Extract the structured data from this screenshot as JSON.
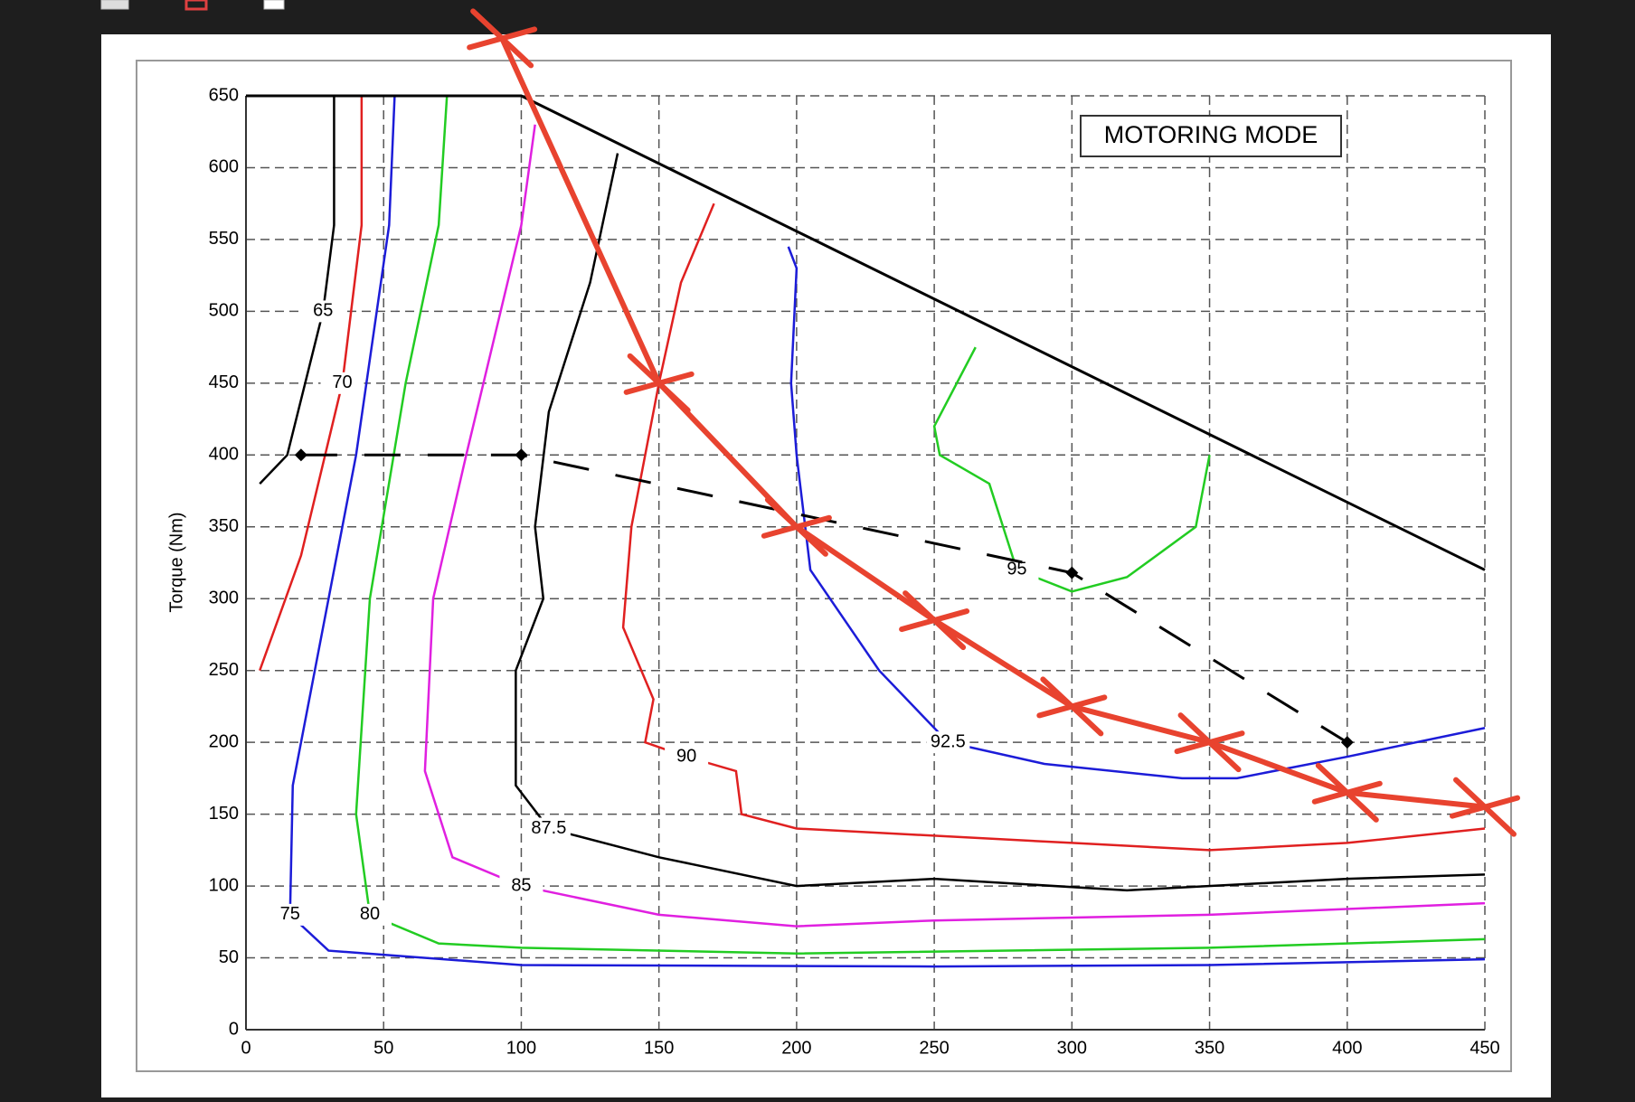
{
  "chart_data": {
    "type": "contour",
    "annotation": "MOTORING MODE",
    "y_label": "Torque (Nm)",
    "xlim": [
      0,
      450
    ],
    "ylim": [
      0,
      650
    ],
    "xticks": [
      0,
      50,
      100,
      150,
      200,
      250,
      300,
      350,
      400,
      450
    ],
    "yticks": [
      0,
      50,
      100,
      150,
      200,
      250,
      300,
      350,
      400,
      450,
      500,
      550,
      600,
      650
    ],
    "grid": true,
    "series": [
      {
        "name": "65",
        "color": "#000000",
        "x": [
          5,
          15,
          28,
          32,
          32
        ],
        "y": [
          380,
          400,
          500,
          560,
          650
        ]
      },
      {
        "name": "70",
        "color": "#e02020",
        "x": [
          5,
          20,
          35,
          42,
          42
        ],
        "y": [
          250,
          330,
          450,
          560,
          650
        ]
      },
      {
        "name": "75",
        "color": "#1c1cd8",
        "x": [
          54,
          52,
          40,
          25,
          17,
          16,
          30,
          100,
          250,
          350,
          450
        ],
        "y": [
          650,
          560,
          400,
          250,
          170,
          80,
          55,
          45,
          44,
          45,
          49
        ]
      },
      {
        "name": "80",
        "color": "#22cc22",
        "x": [
          73,
          70,
          58,
          45,
          40,
          45,
          70,
          100,
          200,
          350,
          450
        ],
        "y": [
          650,
          560,
          450,
          300,
          150,
          80,
          60,
          57,
          53,
          57,
          63
        ]
      },
      {
        "name": "85",
        "color": "#e020e0",
        "x": [
          105,
          100,
          80,
          68,
          65,
          75,
          100,
          150,
          200,
          250,
          350,
          450
        ],
        "y": [
          630,
          560,
          400,
          300,
          180,
          120,
          100,
          80,
          72,
          76,
          80,
          88
        ]
      },
      {
        "name": "87.5",
        "color": "#000000",
        "x": [
          135,
          125,
          110,
          105,
          108,
          98,
          98,
          110,
          150,
          200,
          250,
          320,
          400,
          450
        ],
        "y": [
          610,
          520,
          430,
          350,
          300,
          250,
          170,
          140,
          120,
          100,
          105,
          97,
          105,
          108
        ]
      },
      {
        "name": "90",
        "color": "#e02020",
        "x": [
          170,
          158,
          150,
          140,
          137,
          148,
          145,
          160,
          178,
          180,
          200,
          300,
          350,
          400,
          450
        ],
        "y": [
          575,
          520,
          450,
          350,
          280,
          230,
          200,
          190,
          180,
          150,
          140,
          130,
          125,
          130,
          140
        ]
      },
      {
        "name": "92.5",
        "color": "#1c1cd8",
        "x": [
          197,
          200,
          198,
          200,
          205,
          230,
          255,
          290,
          340,
          360,
          400,
          450
        ],
        "y": [
          545,
          530,
          450,
          400,
          320,
          250,
          200,
          185,
          175,
          175,
          190,
          210
        ]
      },
      {
        "name": "95",
        "color": "#22cc22",
        "x": [
          265,
          250,
          252,
          270,
          280,
          300,
          320,
          345,
          350
        ],
        "y": [
          475,
          420,
          400,
          380,
          320,
          305,
          315,
          350,
          400
        ]
      }
    ],
    "envelope": {
      "color": "#000000",
      "x": [
        0,
        100,
        450
      ],
      "y": [
        650,
        650,
        320
      ]
    },
    "operating_line": {
      "color": "#000000",
      "x": [
        20,
        100,
        300,
        400
      ],
      "y": [
        400,
        400,
        318,
        200
      ]
    },
    "pen_stroke": {
      "color": "#e8432f",
      "x": [
        93,
        150,
        200,
        250,
        300,
        350,
        400,
        450
      ],
      "y": [
        690,
        450,
        350,
        285,
        225,
        200,
        165,
        155
      ]
    }
  }
}
